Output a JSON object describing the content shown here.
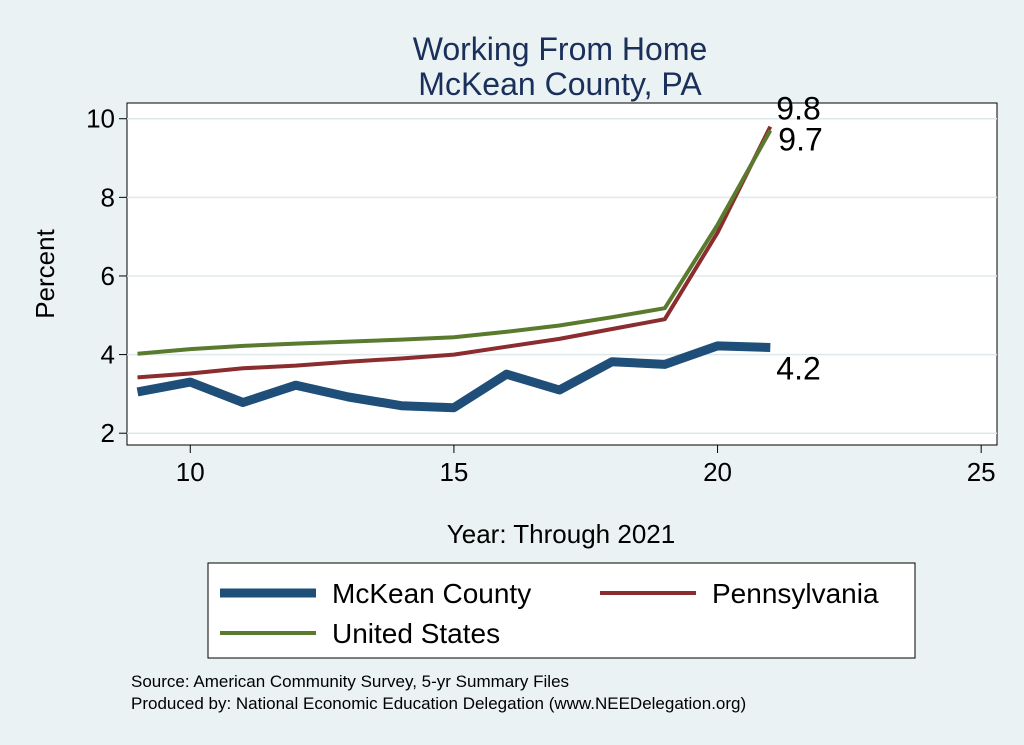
{
  "chart_data": {
    "type": "line",
    "title": "Working From Home",
    "subtitle": "McKean County, PA",
    "xlabel": "Year: Through 2021",
    "ylabel": "Percent",
    "xlim": [
      8.8,
      25.3
    ],
    "ylim": [
      1.7,
      10.4
    ],
    "xticks": [
      10,
      15,
      20,
      25
    ],
    "yticks": [
      2,
      4,
      6,
      8,
      10
    ],
    "grid": true,
    "legend_position": "bottom",
    "series": [
      {
        "name": "McKean County",
        "color": "#1f4e79",
        "x": [
          9,
          10,
          11,
          12,
          13,
          14,
          15,
          16,
          17,
          18,
          19,
          20,
          21
        ],
        "values": [
          3.05,
          3.3,
          2.78,
          3.22,
          2.92,
          2.7,
          2.65,
          3.5,
          3.1,
          3.82,
          3.75,
          4.22,
          4.18
        ],
        "end_label": "4.2"
      },
      {
        "name": "Pennsylvania",
        "color": "#8b2c2e",
        "x": [
          9,
          10,
          11,
          12,
          13,
          14,
          15,
          16,
          17,
          18,
          19,
          20,
          21
        ],
        "values": [
          3.42,
          3.52,
          3.65,
          3.72,
          3.82,
          3.9,
          4.0,
          4.2,
          4.4,
          4.65,
          4.9,
          7.1,
          9.8
        ],
        "end_label": "9.8"
      },
      {
        "name": "United States",
        "color": "#5a7a2e",
        "x": [
          9,
          10,
          11,
          12,
          13,
          14,
          15,
          16,
          17,
          18,
          19,
          20,
          21
        ],
        "values": [
          4.02,
          4.14,
          4.22,
          4.28,
          4.33,
          4.38,
          4.44,
          4.58,
          4.74,
          4.95,
          5.18,
          7.3,
          9.7
        ],
        "end_label": "9.7"
      }
    ]
  },
  "notes": [
    "Source: American Community Survey, 5-yr Summary Files",
    "Produced by: National Economic Education Delegation (www.NEEDelegation.org)"
  ]
}
